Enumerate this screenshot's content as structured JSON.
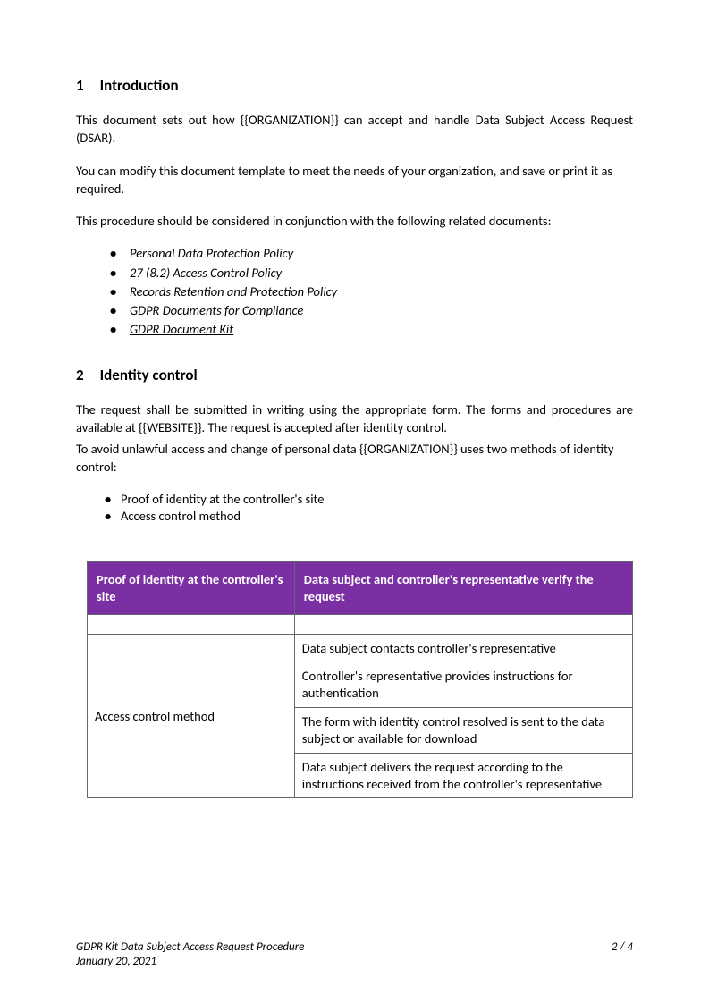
{
  "colors": {
    "table_header_bg": "#7a2fa3",
    "table_header_fg": "#ffffff",
    "text": "#000000",
    "border": "#666666",
    "background": "#ffffff"
  },
  "typography": {
    "body_fontsize_pt": 11,
    "heading_fontsize_pt": 13,
    "footer_fontsize_pt": 10,
    "font_family": "Calibri"
  },
  "section1": {
    "number": "1",
    "title": "Introduction",
    "para1": "This document sets out how {{ORGANIZATION}} can accept and handle Data Subject Access Request (DSAR).",
    "para2": "You can modify this document template to meet the needs of your organization, and save or print it as required.",
    "para3": "This procedure should be considered in conjunction with the following related documents:",
    "list": [
      {
        "text": "Personal Data Protection Policy",
        "link": false
      },
      {
        "text": "27 (8.2) Access Control Policy",
        "link": false
      },
      {
        "text": "Records Retention and Protection Policy",
        "link": false
      },
      {
        "text": "GDPR Documents for Compliance",
        "link": true
      },
      {
        "text": "GDPR Document Kit",
        "link": true
      }
    ]
  },
  "section2": {
    "number": "2",
    "title": "Identity control",
    "para1": "The request shall be submitted in writing using the appropriate form. The forms and procedures are available at {{WEBSITE}}. The request is accepted after identity control.",
    "para2": "To avoid unlawful access and change of personal data {{ORGANIZATION}} uses two methods of identity control:",
    "methods": [
      "Proof of identity at the controller's site",
      "Access control method"
    ]
  },
  "table": {
    "headers": [
      "Proof of identity at the controller's site",
      "Data subject and controller's representative verify the request"
    ],
    "row_label": "Access control method",
    "steps": [
      "Data subject contacts controller's representative",
      "Controller's representative provides instructions for authentication",
      "The form with identity control resolved is sent to the data subject or available for download",
      "Data subject delivers the request according to the instructions received from the controller's representative"
    ]
  },
  "footer": {
    "title_prefix": "GDPR Kit",
    "title": "Data Subject Access Request Procedure",
    "date": "January 20, 2021",
    "page": "2 / 4"
  }
}
